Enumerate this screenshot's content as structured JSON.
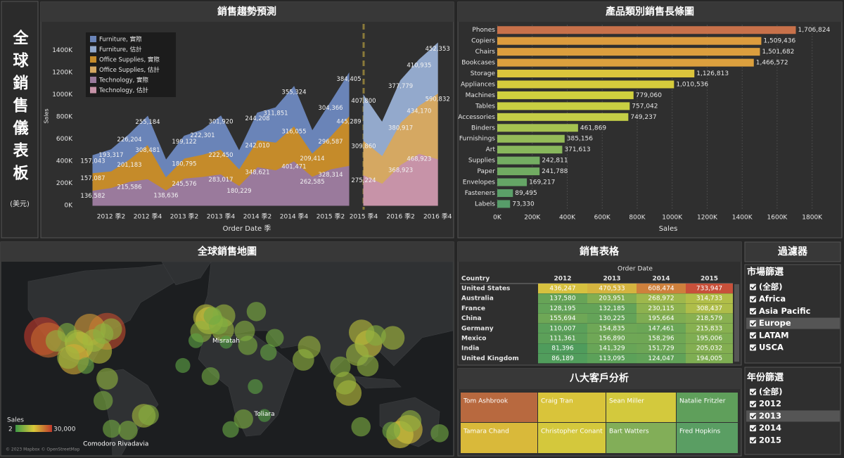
{
  "sidebar": {
    "title": "全球銷售儀表板",
    "unit": "(美元)"
  },
  "chart_data": [
    {
      "type": "area",
      "title": "銷售趨勢預測",
      "x_label": "Order Date 季",
      "y_label": "Sales",
      "categories": [
        null,
        "2012 季2",
        null,
        "2012 季4",
        null,
        "2013 季2",
        null,
        "2013 季4",
        null,
        "2014 季2",
        null,
        "2014 季4",
        null,
        "2015 季2",
        null,
        "2015 季4",
        null,
        "2016 季2",
        null,
        "2016 季4"
      ],
      "series": [
        {
          "name": "Furniture, 實際",
          "color": "#6a84b8",
          "values": [
            157043,
            193317,
            226204,
            255184,
            150000,
            199122,
            222301,
            301920,
            160000,
            244208,
            311851,
            355324,
            200000,
            304366,
            384405,
            null,
            null,
            null,
            null,
            null
          ],
          "value_labels": [
            "157,043",
            "193,317",
            "226,204",
            "255,184",
            null,
            "199,122",
            "222,301",
            "301,920",
            null,
            "244,208",
            "311,851",
            "355,324",
            null,
            "304,366",
            "384,405",
            null,
            null,
            null,
            null,
            null
          ]
        },
        {
          "name": "Furniture, 估計",
          "color": "#93a9cc",
          "values": [
            null,
            null,
            null,
            null,
            null,
            null,
            null,
            null,
            null,
            null,
            null,
            null,
            null,
            null,
            null,
            407800,
            300000,
            377779,
            410935,
            452353
          ],
          "value_labels": [
            null,
            null,
            null,
            null,
            null,
            null,
            null,
            null,
            null,
            null,
            null,
            null,
            null,
            null,
            null,
            "407,800",
            null,
            "377,779",
            "410,935",
            "452,353"
          ]
        },
        {
          "name": "Office Supplies, 實際",
          "color": "#c58b2a",
          "values": [
            157087,
            150000,
            201183,
            308481,
            120000,
            180795,
            200000,
            222450,
            150000,
            242010,
            250000,
            316055,
            209414,
            296587,
            445289,
            null,
            null,
            null,
            null,
            null
          ],
          "value_labels": [
            "157,087",
            null,
            "201,183",
            "308,481",
            null,
            "180,795",
            null,
            "222,450",
            null,
            "242,010",
            null,
            "316,055",
            "209,414",
            "296,587",
            "445,289",
            null,
            null,
            null,
            null,
            null
          ]
        },
        {
          "name": "Office Supplies, 估計",
          "color": "#d5a862",
          "values": [
            null,
            null,
            null,
            null,
            null,
            null,
            null,
            null,
            null,
            null,
            null,
            null,
            null,
            null,
            null,
            309860,
            250000,
            380917,
            434170,
            590832
          ],
          "value_labels": [
            null,
            null,
            null,
            null,
            null,
            null,
            null,
            null,
            null,
            null,
            null,
            null,
            null,
            null,
            null,
            "309,860",
            null,
            "380,917",
            "434,170",
            "590,832"
          ]
        },
        {
          "name": "Technology, 實際",
          "color": "#9a7a9c",
          "values": [
            136582,
            160000,
            215586,
            240000,
            138636,
            245576,
            260000,
            283017,
            180229,
            348621,
            320000,
            401471,
            262585,
            328314,
            360000,
            null,
            null,
            null,
            null,
            null
          ],
          "value_labels": [
            "136,582",
            null,
            "215,586",
            null,
            "138,636",
            "245,576",
            null,
            "283,017",
            "180,229",
            "348,621",
            null,
            "401,471",
            "262,585",
            "328,314",
            null,
            null,
            null,
            null,
            null,
            null
          ]
        },
        {
          "name": "Technology, 估計",
          "color": "#c793a8",
          "values": [
            null,
            null,
            null,
            null,
            null,
            null,
            null,
            null,
            null,
            null,
            null,
            null,
            null,
            null,
            null,
            275224,
            200000,
            368923,
            468923,
            420000
          ],
          "value_labels": [
            null,
            null,
            null,
            null,
            null,
            null,
            null,
            null,
            null,
            null,
            null,
            null,
            null,
            null,
            null,
            "275,224",
            null,
            "368,923",
            "468,923",
            null
          ]
        }
      ],
      "ylim": [
        0,
        1600000
      ],
      "yticks": [
        {
          "value": 0,
          "label": "0K"
        },
        {
          "value": 200000,
          "label": "200K"
        },
        {
          "value": 400000,
          "label": "400K"
        },
        {
          "value": 600000,
          "label": "600K"
        },
        {
          "value": 800000,
          "label": "800K"
        },
        {
          "value": 1000000,
          "label": "1000K"
        },
        {
          "value": 1200000,
          "label": "1200K"
        },
        {
          "value": 1400000,
          "label": "1400K"
        }
      ],
      "grid": false,
      "stacked": true
    },
    {
      "type": "barh",
      "title": "產品類別銷售長條圖",
      "x_label": "Sales",
      "categories": [
        "Phones",
        "Copiers",
        "Chairs",
        "Bookcases",
        "Storage",
        "Appliances",
        "Machines",
        "Tables",
        "Accessories",
        "Binders",
        "Furnishings",
        "Art",
        "Supplies",
        "Paper",
        "Envelopes",
        "Fasteners",
        "Labels"
      ],
      "values": [
        1706824,
        1509436,
        1501682,
        1466572,
        1126813,
        1010536,
        779060,
        757042,
        749237,
        461869,
        385156,
        371613,
        242811,
        241788,
        169217,
        89495,
        73330
      ],
      "value_labels": [
        "1,706,824",
        "1,509,436",
        "1,501,682",
        "1,466,572",
        "1,126,813",
        "1,010,536",
        "779,060",
        "757,042",
        "749,237",
        "461,869",
        "385,156",
        "371,613",
        "242,811",
        "241,788",
        "169,217",
        "89,495",
        "73,330"
      ],
      "colors": [
        "#c8714a",
        "#dc9c3e",
        "#dc9e3e",
        "#dca03e",
        "#dcc43c",
        "#d6cb3c",
        "#d0d03e",
        "#c9cf42",
        "#c4ce46",
        "#a5c250",
        "#94bb58",
        "#88b75c",
        "#74ad62",
        "#71ab62",
        "#65a566",
        "#5b9f68",
        "#579c69"
      ],
      "xlim": [
        0,
        1950000
      ],
      "xticks": [
        {
          "value": 0,
          "label": "0K"
        },
        {
          "value": 200000,
          "label": "200K"
        },
        {
          "value": 400000,
          "label": "400K"
        },
        {
          "value": 600000,
          "label": "600K"
        },
        {
          "value": 800000,
          "label": "800K"
        },
        {
          "value": 1000000,
          "label": "1000K"
        },
        {
          "value": 1200000,
          "label": "1200K"
        },
        {
          "value": 1400000,
          "label": "1400K"
        },
        {
          "value": 1600000,
          "label": "1600K"
        },
        {
          "value": 1800000,
          "label": "1800K"
        }
      ],
      "grid": true
    }
  ],
  "map": {
    "title": "全球銷售地圖",
    "places": [
      {
        "name": "Misratah",
        "lon": 15,
        "lat": 32.4
      },
      {
        "name": "Toliara",
        "lon": 43.7,
        "lat": -23.3
      },
      {
        "name": "Comodoro Rivadavia",
        "lon": -67.5,
        "lat": -45.9
      }
    ],
    "legend": {
      "title": "Sales",
      "min": 2,
      "max": {
        "value": 30000,
        "label": "30,000"
      },
      "colors": [
        "#3f9a46",
        "#d8c83a",
        "#c0392b"
      ]
    },
    "copyright": "© 2023 Mapbox © OpenStreetMap",
    "points": [
      {
        "lon": -122,
        "lat": 37,
        "value": 30000
      },
      {
        "lon": -118,
        "lat": 34,
        "value": 25000
      },
      {
        "lon": -74,
        "lat": 40.7,
        "value": 28000
      },
      {
        "lon": -87,
        "lat": 41.9,
        "value": 20000
      },
      {
        "lon": -95,
        "lat": 29.7,
        "value": 15000
      },
      {
        "lon": -80,
        "lat": 25.8,
        "value": 12000
      },
      {
        "lon": -84,
        "lat": 33.7,
        "value": 9000
      },
      {
        "lon": -104,
        "lat": 39.7,
        "value": 6000
      },
      {
        "lon": -112,
        "lat": 33.4,
        "value": 8000
      },
      {
        "lon": -97,
        "lat": 32.8,
        "value": 10000
      },
      {
        "lon": -77,
        "lat": 38.9,
        "value": 7000
      },
      {
        "lon": -71,
        "lat": 42.3,
        "value": 8000
      },
      {
        "lon": -99,
        "lat": 19.4,
        "value": 18000
      },
      {
        "lon": -103,
        "lat": 20.7,
        "value": 9000
      },
      {
        "lon": -74,
        "lat": 4.6,
        "value": 8000
      },
      {
        "lon": -77,
        "lat": -12,
        "value": 6000
      },
      {
        "lon": -46.6,
        "lat": -23.5,
        "value": 10000
      },
      {
        "lon": -43,
        "lat": -22.9,
        "value": 7000
      },
      {
        "lon": -58.4,
        "lat": -34.6,
        "value": 6000
      },
      {
        "lon": -70.6,
        "lat": -33.4,
        "value": 5000
      },
      {
        "lon": -90,
        "lat": 14.6,
        "value": 4000
      },
      {
        "lon": -0.1,
        "lat": 51.5,
        "value": 12000
      },
      {
        "lon": 2.35,
        "lat": 48.85,
        "value": 14000
      },
      {
        "lon": 13.4,
        "lat": 52.5,
        "value": 9000
      },
      {
        "lon": -3.7,
        "lat": 40.4,
        "value": 8000
      },
      {
        "lon": 12.5,
        "lat": 41.9,
        "value": 9000
      },
      {
        "lon": 9.2,
        "lat": 45.5,
        "value": 6000
      },
      {
        "lon": 4.9,
        "lat": 52.4,
        "value": 5000
      },
      {
        "lon": 37.6,
        "lat": 55.7,
        "value": 6000
      },
      {
        "lon": 28.9,
        "lat": 41,
        "value": 7000
      },
      {
        "lon": 31.2,
        "lat": 30,
        "value": 6000
      },
      {
        "lon": 3.4,
        "lat": 6.5,
        "value": 5000
      },
      {
        "lon": 28,
        "lat": -26,
        "value": 6000
      },
      {
        "lon": 36.8,
        "lat": -1.3,
        "value": 3000
      },
      {
        "lon": -7.6,
        "lat": 33.6,
        "value": 3000
      },
      {
        "lon": 15,
        "lat": 32.4,
        "value": 2000
      },
      {
        "lon": 43.7,
        "lat": -23.3,
        "value": 2000
      },
      {
        "lon": 18.4,
        "lat": -33.9,
        "value": 4000
      },
      {
        "lon": -17.4,
        "lat": 14.7,
        "value": 3000
      },
      {
        "lon": 77.2,
        "lat": 28.6,
        "value": 9000
      },
      {
        "lon": 72.8,
        "lat": 19,
        "value": 8000
      },
      {
        "lon": 121.5,
        "lat": 31.2,
        "value": 14000
      },
      {
        "lon": 116.4,
        "lat": 39.9,
        "value": 12000
      },
      {
        "lon": 113.2,
        "lat": 23.1,
        "value": 9000
      },
      {
        "lon": 139.7,
        "lat": 35.7,
        "value": 10000
      },
      {
        "lon": 127,
        "lat": 37.5,
        "value": 7000
      },
      {
        "lon": 106.8,
        "lat": -6.2,
        "value": 12000
      },
      {
        "lon": 100.5,
        "lat": 13.7,
        "value": 7000
      },
      {
        "lon": 103.8,
        "lat": 1.3,
        "value": 9000
      },
      {
        "lon": 121,
        "lat": 14.6,
        "value": 8000
      },
      {
        "lon": 51.4,
        "lat": 35.7,
        "value": 5000
      },
      {
        "lon": 46.7,
        "lat": 24.7,
        "value": 4000
      },
      {
        "lon": 151.2,
        "lat": -33.9,
        "value": 16000
      },
      {
        "lon": 145,
        "lat": -37.8,
        "value": 14000
      },
      {
        "lon": 153,
        "lat": -27.5,
        "value": 8000
      },
      {
        "lon": 115.9,
        "lat": -31.9,
        "value": 6000
      },
      {
        "lon": 138.6,
        "lat": -34.9,
        "value": 5000
      },
      {
        "lon": 174.8,
        "lat": -36.8,
        "value": 5000
      }
    ]
  },
  "table": {
    "title": "銷售表格",
    "column_group": "Order Date",
    "columns": [
      "Country",
      "2012",
      "2013",
      "2014",
      "2015"
    ],
    "color_scale": [
      "#4f9c5c",
      "#d8cc40",
      "#c8503a"
    ],
    "rows": [
      [
        "United States",
        "436,247",
        "470,533",
        "608,474",
        "733,947"
      ],
      [
        "Australia",
        "137,580",
        "203,951",
        "268,972",
        "314,733"
      ],
      [
        "France",
        "128,195",
        "132,185",
        "230,115",
        "308,437"
      ],
      [
        "China",
        "155,694",
        "130,225",
        "195,664",
        "218,579"
      ],
      [
        "Germany",
        "110,007",
        "154,835",
        "147,461",
        "215,833"
      ],
      [
        "Mexico",
        "111,361",
        "156,890",
        "158,296",
        "195,006"
      ],
      [
        "India",
        "81,396",
        "141,329",
        "151,729",
        "205,032"
      ],
      [
        "United Kingdom",
        "86,189",
        "113,095",
        "124,047",
        "194,005"
      ]
    ]
  },
  "treemap": {
    "title": "八大客戶分析",
    "cells": [
      {
        "name": "Tom Ashbrook",
        "color": "#b8693f"
      },
      {
        "name": "Craig Tran",
        "color": "#d9c43a"
      },
      {
        "name": "Sean Miller",
        "color": "#d3c93d"
      },
      {
        "name": "Natalie Fritzler",
        "color": "#5f9f5b"
      },
      {
        "name": "Tamara Chand",
        "color": "#d9b93a"
      },
      {
        "name": "Christopher Conant",
        "color": "#d4c83c"
      },
      {
        "name": "Bart Watters",
        "color": "#82ae58"
      },
      {
        "name": "Fred Hopkins",
        "color": "#5a9e63"
      }
    ]
  },
  "filters": {
    "title": "過濾器",
    "market": {
      "title": "市場篩選",
      "options": [
        "(全部)",
        "Africa",
        "Asia Pacific",
        "Europe",
        "LATAM",
        "USCA"
      ],
      "highlighted": "Europe"
    },
    "year": {
      "title": "年份篩選",
      "options": [
        "(全部)",
        "2012",
        "2013",
        "2014",
        "2015"
      ],
      "highlighted": "2013"
    }
  }
}
